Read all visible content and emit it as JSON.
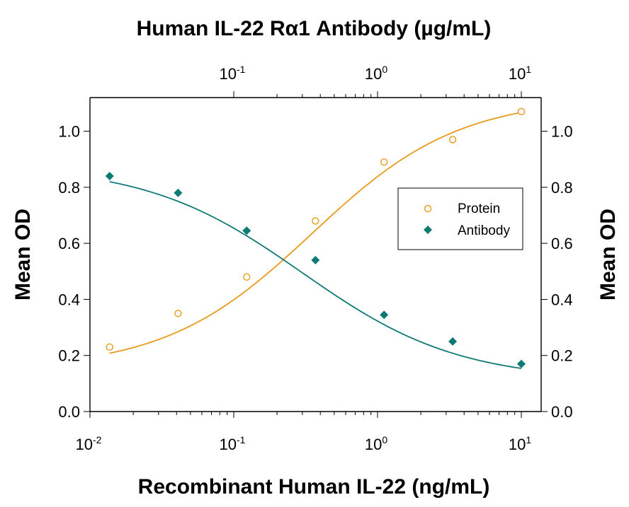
{
  "chart_data": {
    "type": "scatter",
    "title": "Human IL-22 Rα1 Antibody (µg/mL)",
    "xlabel": "Recombinant Human IL-22 (ng/mL)",
    "ylabel": "Mean OD",
    "ylabel_right": "Mean OD",
    "x_scale": "log",
    "xlim": [
      0.01,
      15
    ],
    "ylim": [
      0,
      1.12
    ],
    "x_ticks_bottom": [
      {
        "value": 0.01,
        "base": "10",
        "exp": "-2"
      },
      {
        "value": 0.1,
        "base": "10",
        "exp": "-1"
      },
      {
        "value": 1,
        "base": "10",
        "exp": "0"
      },
      {
        "value": 10,
        "base": "10",
        "exp": "1"
      }
    ],
    "x_ticks_top": [
      {
        "value": 0.1,
        "base": "10",
        "exp": "-1"
      },
      {
        "value": 1,
        "base": "10",
        "exp": "0"
      },
      {
        "value": 10,
        "base": "10",
        "exp": "1"
      }
    ],
    "y_ticks": [
      "0.0",
      "0.2",
      "0.4",
      "0.6",
      "0.8",
      "1.0"
    ],
    "y_tick_values": [
      0,
      0.2,
      0.4,
      0.6,
      0.8,
      1.0
    ],
    "grid": false,
    "legend_position": "center-right",
    "series": [
      {
        "name": "Protein",
        "marker": "open-circle",
        "color": "#e89a1a",
        "x": [
          0.0137,
          0.041,
          0.123,
          0.37,
          1.11,
          3.33,
          10
        ],
        "y": [
          0.23,
          0.35,
          0.48,
          0.68,
          0.89,
          0.97,
          1.07
        ]
      },
      {
        "name": "Antibody",
        "marker": "filled-diamond",
        "color": "#0e7a74",
        "x": [
          0.0137,
          0.041,
          0.123,
          0.37,
          1.11,
          3.33,
          10
        ],
        "y": [
          0.84,
          0.78,
          0.645,
          0.54,
          0.345,
          0.25,
          0.17
        ]
      }
    ],
    "fit_curves": [
      {
        "series": "Protein",
        "bottom": 0.15,
        "top": 1.12,
        "ec50": 0.35,
        "hill": 0.85
      },
      {
        "series": "Antibody",
        "bottom": 0.11,
        "top": 0.88,
        "ec50": 0.3,
        "hill": 0.8
      }
    ]
  }
}
